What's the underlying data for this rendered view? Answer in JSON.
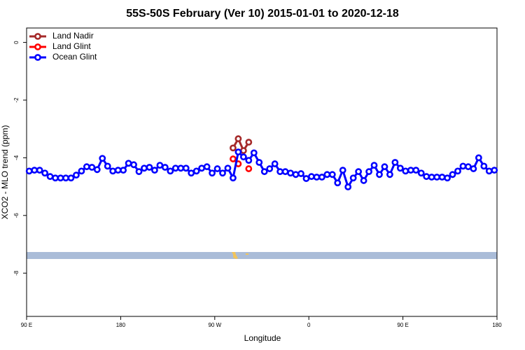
{
  "chart_data": {
    "type": "line",
    "title": "55S-50S February (Ver 10)   2015-01-01 to 2020-12-18",
    "xlabel": "Longitude",
    "ylabel": "XCO2 - MLO trend (ppm)",
    "xlim": [
      90,
      540
    ],
    "ylim": [
      -9.5,
      0.5
    ],
    "xticks": [
      {
        "value": 90,
        "label": "90 E"
      },
      {
        "value": 180,
        "label": "180"
      },
      {
        "value": 270,
        "label": "90 W"
      },
      {
        "value": 360,
        "label": "0"
      },
      {
        "value": 450,
        "label": "90 E"
      },
      {
        "value": 540,
        "label": "180"
      }
    ],
    "yticks": [
      0,
      -2,
      -4,
      -6,
      -8
    ],
    "legend": "top-left",
    "series": [
      {
        "name": "Land Nadir",
        "color": "#a52a2a",
        "x": [
          287.5,
          292.5,
          297.5,
          302.5
        ],
        "values": [
          -3.66,
          -3.34,
          -3.75,
          -3.46
        ]
      },
      {
        "name": "Land Glint",
        "color": "#ff0000",
        "x": [
          287.5,
          292.5,
          297.5,
          302.5
        ],
        "values": [
          -4.04,
          -4.21,
          null,
          -4.38
        ]
      },
      {
        "name": "Ocean Glint",
        "color": "#0000ff",
        "x": [
          92.5,
          97.5,
          102.5,
          107.5,
          112.5,
          117.5,
          122.5,
          127.5,
          132.5,
          137.5,
          142.5,
          147.5,
          152.5,
          157.5,
          162.5,
          167.5,
          172.5,
          177.5,
          182.5,
          187.5,
          192.5,
          197.5,
          202.5,
          207.5,
          212.5,
          217.5,
          222.5,
          227.5,
          232.5,
          237.5,
          242.5,
          247.5,
          252.5,
          257.5,
          262.5,
          267.5,
          272.5,
          277.5,
          282.5,
          287.5,
          292.5,
          297.5,
          302.5,
          307.5,
          312.5,
          317.5,
          322.5,
          327.5,
          332.5,
          337.5,
          342.5,
          347.5,
          352.5,
          357.5,
          362.5,
          367.5,
          372.5,
          377.5,
          382.5,
          387.5,
          392.5,
          397.5,
          402.5,
          407.5,
          412.5,
          417.5,
          422.5,
          427.5,
          432.5,
          437.5,
          442.5,
          447.5,
          452.5,
          457.5,
          462.5,
          467.5,
          472.5,
          477.5,
          482.5,
          487.5,
          492.5,
          497.5,
          502.5,
          507.5,
          512.5,
          517.5,
          522.5,
          527.5,
          532.5,
          537.5
        ],
        "values": [
          -4.46,
          -4.43,
          -4.43,
          -4.53,
          -4.65,
          -4.7,
          -4.7,
          -4.7,
          -4.7,
          -4.6,
          -4.46,
          -4.31,
          -4.33,
          -4.41,
          -4.02,
          -4.29,
          -4.46,
          -4.43,
          -4.43,
          -4.19,
          -4.24,
          -4.48,
          -4.36,
          -4.33,
          -4.43,
          -4.26,
          -4.33,
          -4.46,
          -4.36,
          -4.36,
          -4.36,
          -4.53,
          -4.46,
          -4.36,
          -4.31,
          -4.53,
          -4.38,
          -4.53,
          -4.36,
          -4.7,
          -3.8,
          -3.97,
          -4.09,
          -3.83,
          -4.16,
          -4.48,
          -4.38,
          -4.21,
          -4.48,
          -4.48,
          -4.53,
          -4.58,
          -4.55,
          -4.72,
          -4.65,
          -4.67,
          -4.67,
          -4.58,
          -4.58,
          -4.87,
          -4.43,
          -5.01,
          -4.7,
          -4.48,
          -4.79,
          -4.48,
          -4.26,
          -4.58,
          -4.31,
          -4.58,
          -4.16,
          -4.36,
          -4.46,
          -4.43,
          -4.43,
          -4.53,
          -4.65,
          -4.67,
          -4.67,
          -4.67,
          -4.7,
          -4.58,
          -4.46,
          -4.29,
          -4.31,
          -4.38,
          -4.0,
          -4.29,
          -4.46,
          -4.43
        ]
      }
    ]
  }
}
